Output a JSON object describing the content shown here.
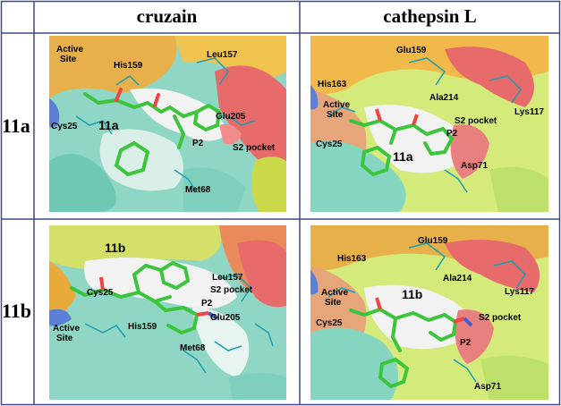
{
  "columns": [
    "cruzain",
    "cathepsin L"
  ],
  "rows": [
    "11a",
    "11b"
  ],
  "panels": {
    "a_cruzain": {
      "ligand": "11a",
      "labels": {
        "active_site": "Active\nSite",
        "his": "His159",
        "leu": "Leu157",
        "glu": "Glu205",
        "cys": "Cys25",
        "p2": "P2",
        "s2": "S2 pocket",
        "met": "Met68"
      }
    },
    "a_cath": {
      "ligand": "11a",
      "labels": {
        "glu": "Glu159",
        "his": "His163",
        "ala": "Ala214",
        "lys": "Lys117",
        "active_site": "Active\nSite",
        "s2": "S2 pocket",
        "p2": "P2",
        "cys": "Cys25",
        "asp": "Asp71"
      }
    },
    "b_cruzain": {
      "ligand": "11b",
      "labels": {
        "leu": "Leu157",
        "s2": "S2 pocket",
        "cys": "Cys25",
        "p2": "P2",
        "active_site": "Active\nSite",
        "glu": "Glu205",
        "his": "His159",
        "met": "Met68"
      }
    },
    "b_cath": {
      "ligand": "11b",
      "labels": {
        "glu": "Glu159",
        "his": "His163",
        "ala": "Ala214",
        "lys": "Lys117",
        "active_site": "Active\nSite",
        "s2": "S2 pocket",
        "p2": "P2",
        "cys": "Cys25",
        "asp": "Asp71"
      }
    }
  }
}
